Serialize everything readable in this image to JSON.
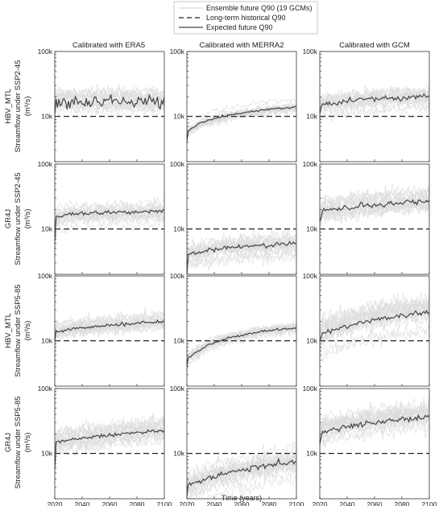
{
  "chart_data": {
    "type": "line",
    "xlabel": "Time (years)",
    "xlim": [
      2020,
      2100
    ],
    "xticks": [
      2020,
      2040,
      2060,
      2080,
      2100
    ],
    "ylim": [
      2000,
      100000
    ],
    "yscale": "log",
    "yticks": [
      10000,
      100000
    ],
    "ytick_labels": [
      "10k",
      "100k"
    ],
    "grid": false,
    "legend_position": "top-center",
    "legend": [
      {
        "key": "ensemble",
        "label": "Ensemble future Q90 (19 GCMs)",
        "color": "#dcdcdc"
      },
      {
        "key": "historical",
        "label": "Long-term historical Q90",
        "color": "#222222"
      },
      {
        "key": "expected",
        "label": "Expected future Q90",
        "color": "#444444"
      }
    ],
    "columns": [
      "Calibrated with ERA5",
      "Calibrated with MERRA2",
      "Calibrated with GCM"
    ],
    "rows": [
      {
        "model": "HBV_MTL",
        "ylabel": "Streamflow under SSP2-45",
        "unit": "(m³/s)"
      },
      {
        "model": "GR4J",
        "ylabel": "Streamflow under SSP2-45",
        "unit": "(m³/s)"
      },
      {
        "model": "HBV_MTL",
        "ylabel": "Streamflow under SSP5-85",
        "unit": "(m³/s)"
      },
      {
        "model": "GR4J",
        "ylabel": "Streamflow under SSP5-85",
        "unit": "(m³/s)"
      }
    ],
    "panels": [
      {
        "row": 0,
        "col": 0,
        "historical": 10000,
        "expected_anchors": [
          [
            2020,
            11000
          ],
          [
            2021,
            17000
          ],
          [
            2100,
            17000
          ]
        ],
        "expected_noise": 0.11,
        "ensemble_spread": 0.25,
        "seed": 11
      },
      {
        "row": 0,
        "col": 1,
        "historical": 10000,
        "expected_anchors": [
          [
            2020,
            4200
          ],
          [
            2021,
            6000
          ],
          [
            2030,
            8000
          ],
          [
            2050,
            10500
          ],
          [
            2075,
            12500
          ],
          [
            2100,
            14000
          ]
        ],
        "expected_noise": 0.02,
        "ensemble_spread": 0.15,
        "seed": 12
      },
      {
        "row": 0,
        "col": 2,
        "historical": 10000,
        "expected_anchors": [
          [
            2020,
            11000
          ],
          [
            2021,
            15000
          ],
          [
            2040,
            17000
          ],
          [
            2070,
            19000
          ],
          [
            2100,
            20000
          ]
        ],
        "expected_noise": 0.05,
        "ensemble_spread": 0.25,
        "seed": 13
      },
      {
        "row": 1,
        "col": 0,
        "historical": 10000,
        "expected_anchors": [
          [
            2020,
            6500
          ],
          [
            2021,
            15000
          ],
          [
            2030,
            17000
          ],
          [
            2060,
            18000
          ],
          [
            2100,
            19000
          ]
        ],
        "expected_noise": 0.03,
        "ensemble_spread": 0.25,
        "seed": 21
      },
      {
        "row": 1,
        "col": 1,
        "historical": 10000,
        "expected_anchors": [
          [
            2020,
            1900
          ],
          [
            2021,
            4000
          ],
          [
            2040,
            5000
          ],
          [
            2070,
            5500
          ],
          [
            2100,
            5800
          ]
        ],
        "expected_noise": 0.04,
        "ensemble_spread": 0.28,
        "seed": 22
      },
      {
        "row": 1,
        "col": 2,
        "historical": 10000,
        "expected_anchors": [
          [
            2020,
            13000
          ],
          [
            2022,
            19000
          ],
          [
            2050,
            22000
          ],
          [
            2075,
            25000
          ],
          [
            2100,
            27000
          ]
        ],
        "expected_noise": 0.05,
        "ensemble_spread": 0.3,
        "seed": 23
      },
      {
        "row": 2,
        "col": 0,
        "historical": 10000,
        "expected_anchors": [
          [
            2020,
            10000
          ],
          [
            2021,
            14000
          ],
          [
            2040,
            16000
          ],
          [
            2070,
            18000
          ],
          [
            2100,
            20000
          ]
        ],
        "expected_noise": 0.03,
        "ensemble_spread": 0.22,
        "seed": 31
      },
      {
        "row": 2,
        "col": 1,
        "historical": 10000,
        "expected_anchors": [
          [
            2020,
            4000
          ],
          [
            2021,
            5500
          ],
          [
            2035,
            8500
          ],
          [
            2050,
            11000
          ],
          [
            2075,
            14000
          ],
          [
            2100,
            16000
          ]
        ],
        "expected_noise": 0.02,
        "ensemble_spread": 0.15,
        "seed": 32
      },
      {
        "row": 2,
        "col": 2,
        "historical": 10000,
        "expected_anchors": [
          [
            2020,
            10000
          ],
          [
            2022,
            13000
          ],
          [
            2050,
            19000
          ],
          [
            2075,
            24000
          ],
          [
            2100,
            27000
          ]
        ],
        "expected_noise": 0.05,
        "ensemble_spread": 0.35,
        "seed": 33
      },
      {
        "row": 3,
        "col": 0,
        "historical": 10000,
        "expected_anchors": [
          [
            2020,
            6000
          ],
          [
            2021,
            15000
          ],
          [
            2040,
            17000
          ],
          [
            2070,
            20000
          ],
          [
            2100,
            23000
          ]
        ],
        "expected_noise": 0.03,
        "ensemble_spread": 0.3,
        "seed": 41
      },
      {
        "row": 3,
        "col": 1,
        "historical": 10000,
        "expected_anchors": [
          [
            2020,
            2200
          ],
          [
            2021,
            3200
          ],
          [
            2040,
            4500
          ],
          [
            2070,
            6000
          ],
          [
            2100,
            7500
          ]
        ],
        "expected_noise": 0.05,
        "ensemble_spread": 0.35,
        "seed": 42
      },
      {
        "row": 3,
        "col": 2,
        "historical": 10000,
        "expected_anchors": [
          [
            2020,
            14000
          ],
          [
            2022,
            22000
          ],
          [
            2050,
            28000
          ],
          [
            2075,
            33000
          ],
          [
            2100,
            36000
          ]
        ],
        "expected_noise": 0.05,
        "ensemble_spread": 0.35,
        "seed": 43
      }
    ]
  }
}
